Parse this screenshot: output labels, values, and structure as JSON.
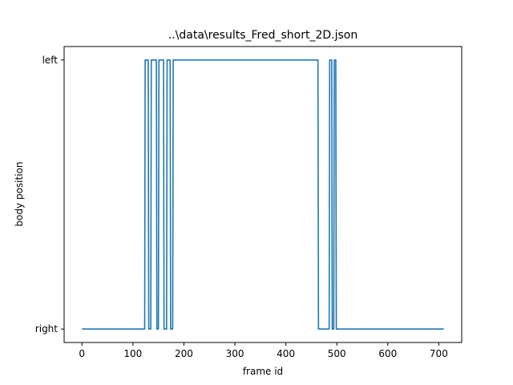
{
  "chart_data": {
    "type": "line",
    "title": "..\\data\\results_Fred_short_2D.json",
    "xlabel": "frame id",
    "ylabel": "body position",
    "xlim": [
      -35,
      745
    ],
    "ylim": [
      -0.05,
      1.05
    ],
    "xticks": [
      0,
      100,
      200,
      300,
      400,
      500,
      600,
      700
    ],
    "xtick_labels": [
      "0",
      "100",
      "200",
      "300",
      "400",
      "500",
      "600",
      "700"
    ],
    "yticks": [
      0,
      1
    ],
    "ytick_labels": [
      "right",
      "left"
    ],
    "grid": false,
    "line_color": "#1f77b4",
    "series": [
      {
        "x": [
          0,
          123,
          124,
          130,
          131,
          135,
          136,
          146,
          147,
          150,
          151,
          160,
          161,
          166,
          167,
          173,
          174,
          178,
          179,
          463,
          464,
          485,
          486,
          490,
          491,
          494,
          495,
          498,
          499,
          710
        ],
        "values": [
          0,
          0,
          1,
          1,
          0,
          0,
          1,
          1,
          0,
          0,
          1,
          1,
          0,
          0,
          1,
          1,
          0,
          0,
          1,
          1,
          0,
          0,
          1,
          1,
          0,
          0,
          1,
          1,
          0,
          0
        ]
      }
    ]
  }
}
